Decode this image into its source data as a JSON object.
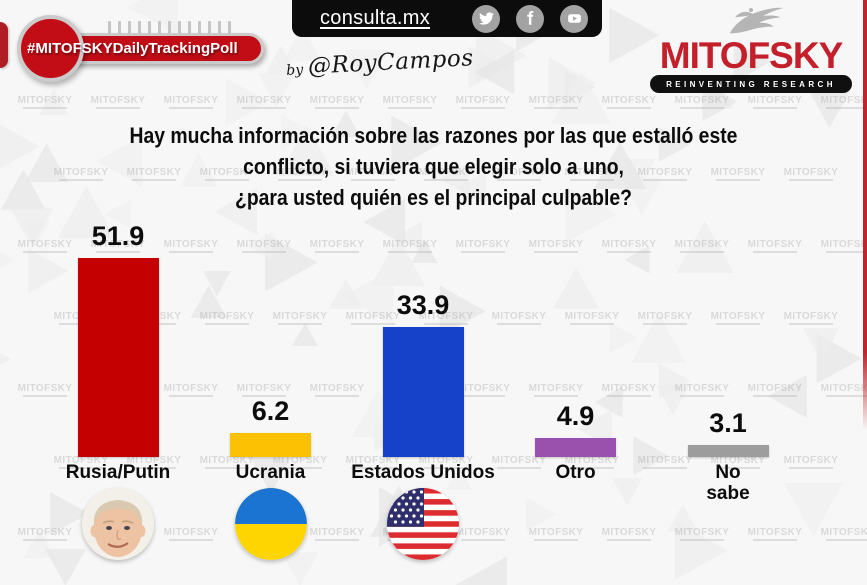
{
  "header": {
    "badge_label": "#MITOFSKYDailyTrackingPoll",
    "site_label": "consulta.mx",
    "byline_prefix": "by",
    "byline_handle": "@RoyCampos",
    "logo_text": "MITOFSKY",
    "logo_tagline": "REINVENTING RESEARCH",
    "social_icons": [
      "twitter-icon",
      "facebook-icon",
      "youtube-icon"
    ]
  },
  "question": {
    "line1": "Hay mucha información sobre las razones por las que estalló este",
    "line2": "conflicto, si tuviera que elegir solo a uno,",
    "line3": "¿para usted quién es el principal culpable?"
  },
  "watermark_text": "MITOFSKY",
  "colors": {
    "brand_red": "#c30d16",
    "logo_red": "#c3202c",
    "topbar_black": "#0c0c0c",
    "social_circle_gray": "#a2a2a2"
  },
  "chart_data": {
    "type": "bar",
    "title": "Hay mucha información sobre las razones por las que estalló este conflicto, si tuviera que elegir solo a uno, ¿para usted quién es el principal culpable?",
    "categories": [
      "Rusia/Putin",
      "Ucrania",
      "Estados Unidos",
      "Otro",
      "No sabe"
    ],
    "display_labels": [
      "Rusia/Putin",
      "Ucrania",
      "Estados Unidos",
      "Otro",
      "No\nsabe"
    ],
    "values": [
      51.9,
      6.2,
      33.9,
      4.9,
      3.1
    ],
    "value_labels": [
      "51.9",
      "6.2",
      "33.9",
      "4.9",
      "3.1"
    ],
    "bar_colors": [
      "#c40000",
      "#fdc103",
      "#1542c8",
      "#9a51ae",
      "#9d9d9d"
    ],
    "icons": [
      "putin-face",
      "ukraine-flag",
      "usa-flag",
      "",
      ""
    ],
    "xlabel": "",
    "ylabel": "",
    "ylim": [
      0,
      55
    ],
    "grid": false,
    "legend": false
  }
}
